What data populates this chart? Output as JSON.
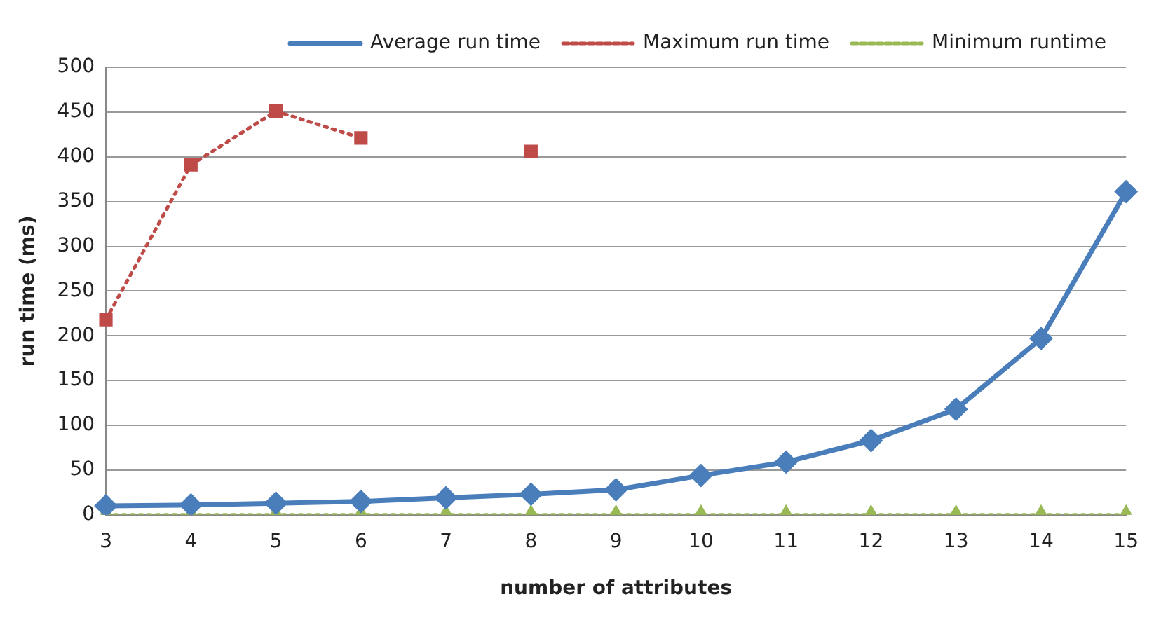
{
  "chart_data": {
    "type": "line",
    "xlabel": "number of attributes",
    "ylabel": "run time (ms)",
    "categories": [
      "3",
      "4",
      "5",
      "6",
      "7",
      "8",
      "9",
      "10",
      "11",
      "12",
      "13",
      "14",
      "15"
    ],
    "series": [
      {
        "name": "Average run time",
        "color": "#4a7ebb",
        "marker": "diamond",
        "line_style": "solid",
        "values": [
          10,
          11,
          13,
          15,
          19,
          23,
          28,
          44,
          59,
          83,
          118,
          197,
          361
        ]
      },
      {
        "name": "Maximum run time",
        "color": "#be4b48",
        "marker": "square",
        "line_style": "dotted",
        "values": [
          218,
          391,
          451,
          421,
          null,
          406,
          null,
          null,
          null,
          null,
          null,
          null,
          null
        ]
      },
      {
        "name": "Minimum runtime",
        "color": "#98b954",
        "marker": "triangle",
        "line_style": "dotted",
        "values": [
          0,
          0,
          0,
          0,
          0,
          0,
          0,
          0,
          0,
          0,
          0,
          0,
          0
        ]
      }
    ],
    "ylim": [
      0,
      500
    ],
    "yticks": [
      0,
      50,
      100,
      150,
      200,
      250,
      300,
      350,
      400,
      450,
      500
    ],
    "grid": "y",
    "legend": "top"
  }
}
